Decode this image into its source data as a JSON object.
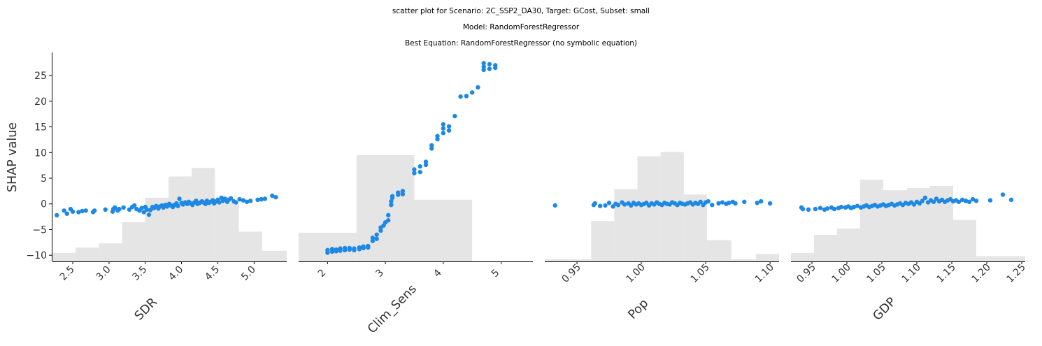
{
  "figure": {
    "title_lines": [
      "scatter plot for Scenario: 2C_SSP2_DA30, Target: GCost, Subset: small",
      "Model: RandomForestRegressor",
      "Best Equation: RandomForestRegressor (no symbolic equation)"
    ],
    "ylabel": "SHAP value",
    "colors": {
      "points": "#1e88e5",
      "histogram": "#e5e5e5",
      "axis": "#000000",
      "text": "#333333"
    }
  },
  "chart_data": [
    {
      "type": "scatter",
      "xlabel": "SDR",
      "ylabel": "SHAP value",
      "xlim": [
        2.22,
        5.45
      ],
      "ylim": [
        -11.2,
        29.5
      ],
      "xticks": [
        2.5,
        3.0,
        3.5,
        4.0,
        4.5,
        5.0
      ],
      "xtick_labels": [
        "2.5",
        "3.0",
        "3.5",
        "4.0",
        "4.5",
        "5.0"
      ],
      "yticks": [
        -10,
        -5,
        0,
        5,
        10,
        15,
        20,
        25
      ],
      "ytick_labels": [
        "−10",
        "−5",
        "0",
        "5",
        "10",
        "15",
        "20",
        "25"
      ],
      "histogram": {
        "edges": [
          2.22,
          2.54,
          2.86,
          3.18,
          3.5,
          3.82,
          4.14,
          4.46,
          4.79,
          5.11,
          5.45
        ],
        "heights": [
          0.08,
          0.13,
          0.17,
          0.37,
          0.6,
          0.8,
          0.88,
          0.55,
          0.28,
          0.1
        ]
      },
      "points": [
        [
          2.28,
          -2.2
        ],
        [
          2.38,
          -1.3
        ],
        [
          2.42,
          -1.9
        ],
        [
          2.47,
          -1.0
        ],
        [
          2.5,
          -1.5
        ],
        [
          2.58,
          -1.6
        ],
        [
          2.63,
          -1.4
        ],
        [
          2.68,
          -1.3
        ],
        [
          2.78,
          -1.6
        ],
        [
          2.8,
          -1.3
        ],
        [
          2.95,
          -1.1
        ],
        [
          3.05,
          -1.5
        ],
        [
          3.06,
          -1.0
        ],
        [
          3.08,
          -0.7
        ],
        [
          3.12,
          -1.3
        ],
        [
          3.14,
          -1.0
        ],
        [
          3.2,
          -0.7
        ],
        [
          3.28,
          -1.1
        ],
        [
          3.32,
          -0.6
        ],
        [
          3.35,
          -0.3
        ],
        [
          3.38,
          -1.0
        ],
        [
          3.42,
          -1.3
        ],
        [
          3.45,
          -0.8
        ],
        [
          3.48,
          -1.6
        ],
        [
          3.5,
          -0.6
        ],
        [
          3.52,
          -1.1
        ],
        [
          3.55,
          -2.1
        ],
        [
          3.57,
          -1.2
        ],
        [
          3.6,
          -0.6
        ],
        [
          3.62,
          -0.8
        ],
        [
          3.65,
          -0.4
        ],
        [
          3.68,
          -0.9
        ],
        [
          3.7,
          -0.5
        ],
        [
          3.73,
          -0.3
        ],
        [
          3.75,
          -0.7
        ],
        [
          3.78,
          -0.2
        ],
        [
          3.8,
          -0.5
        ],
        [
          3.83,
          0.0
        ],
        [
          3.85,
          -0.3
        ],
        [
          3.88,
          -0.6
        ],
        [
          3.9,
          -0.2
        ],
        [
          3.93,
          0.1
        ],
        [
          3.95,
          -0.4
        ],
        [
          3.97,
          1.0
        ],
        [
          4.0,
          0.2
        ],
        [
          4.02,
          -0.1
        ],
        [
          4.05,
          0.3
        ],
        [
          4.08,
          0.0
        ],
        [
          4.1,
          0.4
        ],
        [
          4.13,
          0.1
        ],
        [
          4.15,
          -0.2
        ],
        [
          4.18,
          0.3
        ],
        [
          4.2,
          0.6
        ],
        [
          4.22,
          0.0
        ],
        [
          4.25,
          0.2
        ],
        [
          4.28,
          0.5
        ],
        [
          4.3,
          0.3
        ],
        [
          4.33,
          0.0
        ],
        [
          4.35,
          0.6
        ],
        [
          4.38,
          0.2
        ],
        [
          4.4,
          0.4
        ],
        [
          4.43,
          0.7
        ],
        [
          4.45,
          0.1
        ],
        [
          4.48,
          0.5
        ],
        [
          4.5,
          0.8
        ],
        [
          4.52,
          0.3
        ],
        [
          4.55,
          1.2
        ],
        [
          4.57,
          0.6
        ],
        [
          4.6,
          1.0
        ],
        [
          4.63,
          0.4
        ],
        [
          4.65,
          0.8
        ],
        [
          4.68,
          1.1
        ],
        [
          4.72,
          0.5
        ],
        [
          4.75,
          0.3
        ],
        [
          4.8,
          0.9
        ],
        [
          4.85,
          0.7
        ],
        [
          4.9,
          0.4
        ],
        [
          4.95,
          0.6
        ],
        [
          5.05,
          0.8
        ],
        [
          5.1,
          0.9
        ],
        [
          5.15,
          1.0
        ],
        [
          5.25,
          1.6
        ],
        [
          5.3,
          1.3
        ]
      ]
    },
    {
      "type": "scatter",
      "xlabel": "Clim_Sens",
      "xlim": [
        1.5,
        5.55
      ],
      "ylim": [
        -11.2,
        29.5
      ],
      "xticks": [
        2,
        3,
        4,
        5
      ],
      "xtick_labels": [
        "2",
        "3",
        "4",
        "5"
      ],
      "histogram": {
        "edges": [
          1.5,
          2.5,
          3.5,
          4.5,
          5.55
        ],
        "heights": [
          0.27,
          1.0,
          0.58,
          0.0
        ]
      },
      "points": [
        [
          2.0,
          -9.5
        ],
        [
          2.0,
          -9.0
        ],
        [
          2.08,
          -9.3
        ],
        [
          2.08,
          -8.8
        ],
        [
          2.15,
          -9.2
        ],
        [
          2.15,
          -8.9
        ],
        [
          2.22,
          -9.1
        ],
        [
          2.22,
          -8.7
        ],
        [
          2.3,
          -9.0
        ],
        [
          2.3,
          -8.6
        ],
        [
          2.38,
          -8.9
        ],
        [
          2.38,
          -8.6
        ],
        [
          2.46,
          -9.0
        ],
        [
          2.46,
          -8.7
        ],
        [
          2.55,
          -8.8
        ],
        [
          2.55,
          -8.5
        ],
        [
          2.62,
          -8.6
        ],
        [
          2.62,
          -8.3
        ],
        [
          2.7,
          -8.5
        ],
        [
          2.7,
          -8.2
        ],
        [
          2.78,
          -7.2
        ],
        [
          2.78,
          -6.6
        ],
        [
          2.85,
          -6.8
        ],
        [
          2.85,
          -6.0
        ],
        [
          2.92,
          -5.2
        ],
        [
          2.92,
          -4.6
        ],
        [
          2.97,
          -4.2
        ],
        [
          3.0,
          -3.6
        ],
        [
          3.05,
          -3.2
        ],
        [
          3.05,
          -2.2
        ],
        [
          3.1,
          -0.2
        ],
        [
          3.1,
          0.5
        ],
        [
          3.12,
          1.5
        ],
        [
          3.12,
          1.2
        ],
        [
          3.22,
          1.8
        ],
        [
          3.22,
          2.2
        ],
        [
          3.3,
          1.9
        ],
        [
          3.3,
          2.5
        ],
        [
          3.5,
          6.0
        ],
        [
          3.5,
          6.7
        ],
        [
          3.6,
          6.2
        ],
        [
          3.6,
          7.3
        ],
        [
          3.7,
          7.6
        ],
        [
          3.7,
          8.2
        ],
        [
          3.8,
          10.8
        ],
        [
          3.8,
          11.4
        ],
        [
          3.9,
          12.6
        ],
        [
          3.9,
          13.2
        ],
        [
          4.0,
          13.8
        ],
        [
          4.0,
          14.7
        ],
        [
          4.0,
          15.5
        ],
        [
          4.1,
          14.3
        ],
        [
          4.1,
          15.1
        ],
        [
          4.2,
          17.1
        ],
        [
          4.3,
          20.9
        ],
        [
          4.4,
          21.0
        ],
        [
          4.5,
          21.7
        ],
        [
          4.6,
          22.7
        ],
        [
          4.7,
          26.1
        ],
        [
          4.7,
          26.7
        ],
        [
          4.7,
          27.4
        ],
        [
          4.8,
          26.3
        ],
        [
          4.8,
          27.2
        ],
        [
          4.9,
          26.5
        ],
        [
          4.9,
          27.0
        ]
      ]
    },
    {
      "type": "scatter",
      "xlabel": "Pop",
      "xlim": [
        0.925,
        1.107
      ],
      "ylim": [
        -11.2,
        29.5
      ],
      "xticks": [
        0.95,
        1.0,
        1.05,
        1.1
      ],
      "xtick_labels": [
        "0.95",
        "1.00",
        "1.05",
        "1.10"
      ],
      "histogram": {
        "edges": [
          0.925,
          0.943,
          0.961,
          0.979,
          0.997,
          1.015,
          1.033,
          1.051,
          1.07,
          1.089,
          1.107
        ],
        "heights": [
          0.02,
          0.02,
          0.38,
          0.68,
          0.99,
          1.03,
          0.63,
          0.2,
          0.02,
          0.07
        ]
      },
      "points": [
        [
          0.933,
          -0.3
        ],
        [
          0.963,
          -0.2
        ],
        [
          0.964,
          0.1
        ],
        [
          0.968,
          -0.4
        ],
        [
          0.972,
          -0.3
        ],
        [
          0.975,
          0.2
        ],
        [
          0.978,
          -0.5
        ],
        [
          0.98,
          0.0
        ],
        [
          0.982,
          -0.2
        ],
        [
          0.985,
          0.3
        ],
        [
          0.987,
          -0.1
        ],
        [
          0.99,
          0.1
        ],
        [
          0.992,
          -0.3
        ],
        [
          0.994,
          0.2
        ],
        [
          0.996,
          -0.1
        ],
        [
          0.998,
          0.1
        ],
        [
          1.0,
          -0.2
        ],
        [
          1.002,
          0.0
        ],
        [
          1.004,
          0.2
        ],
        [
          1.006,
          -0.3
        ],
        [
          1.008,
          0.1
        ],
        [
          1.01,
          -0.1
        ],
        [
          1.012,
          0.3
        ],
        [
          1.014,
          0.0
        ],
        [
          1.016,
          -0.2
        ],
        [
          1.018,
          0.2
        ],
        [
          1.02,
          0.0
        ],
        [
          1.022,
          -0.1
        ],
        [
          1.024,
          0.3
        ],
        [
          1.026,
          0.1
        ],
        [
          1.028,
          -0.2
        ],
        [
          1.03,
          0.2
        ],
        [
          1.032,
          0.0
        ],
        [
          1.034,
          -0.1
        ],
        [
          1.036,
          0.1
        ],
        [
          1.038,
          0.3
        ],
        [
          1.04,
          -0.1
        ],
        [
          1.042,
          0.2
        ],
        [
          1.044,
          0.0
        ],
        [
          1.046,
          0.4
        ],
        [
          1.048,
          -0.2
        ],
        [
          1.05,
          0.3
        ],
        [
          1.052,
          0.5
        ],
        [
          1.055,
          -0.2
        ],
        [
          1.06,
          0.1
        ],
        [
          1.063,
          0.3
        ],
        [
          1.066,
          0.0
        ],
        [
          1.068,
          0.2
        ],
        [
          1.071,
          0.4
        ],
        [
          1.073,
          0.1
        ],
        [
          1.08,
          0.4
        ],
        [
          1.09,
          0.2
        ],
        [
          1.093,
          0.5
        ],
        [
          1.1,
          0.1
        ]
      ]
    },
    {
      "type": "scatter",
      "xlabel": "GDP",
      "xlim": [
        0.92,
        1.255
      ],
      "ylim": [
        -11.2,
        29.5
      ],
      "xticks": [
        0.95,
        1.0,
        1.05,
        1.1,
        1.15,
        1.2,
        1.25
      ],
      "xtick_labels": [
        "0.95",
        "1.00",
        "1.05",
        "1.10",
        "1.15",
        "1.20",
        "1.25"
      ],
      "histogram": {
        "edges": [
          0.92,
          0.953,
          0.986,
          1.019,
          1.052,
          1.086,
          1.119,
          1.152,
          1.185,
          1.218,
          1.255
        ],
        "heights": [
          0.08,
          0.25,
          0.31,
          0.77,
          0.67,
          0.69,
          0.71,
          0.39,
          0.05,
          0.05
        ]
      },
      "points": [
        [
          0.935,
          -0.7
        ],
        [
          0.937,
          -1.0
        ],
        [
          0.945,
          -1.1
        ],
        [
          0.955,
          -1.0
        ],
        [
          0.962,
          -0.8
        ],
        [
          0.968,
          -1.1
        ],
        [
          0.972,
          -0.9
        ],
        [
          0.978,
          -0.7
        ],
        [
          0.982,
          -1.0
        ],
        [
          0.988,
          -0.8
        ],
        [
          0.992,
          -0.6
        ],
        [
          0.998,
          -0.7
        ],
        [
          1.002,
          -0.5
        ],
        [
          1.006,
          -0.8
        ],
        [
          1.01,
          -0.6
        ],
        [
          1.015,
          -0.4
        ],
        [
          1.02,
          -0.7
        ],
        [
          1.024,
          -0.5
        ],
        [
          1.028,
          -0.3
        ],
        [
          1.032,
          -0.6
        ],
        [
          1.036,
          -0.4
        ],
        [
          1.04,
          -0.2
        ],
        [
          1.044,
          -0.5
        ],
        [
          1.048,
          -0.3
        ],
        [
          1.052,
          -0.1
        ],
        [
          1.056,
          -0.4
        ],
        [
          1.06,
          -0.2
        ],
        [
          1.064,
          0.0
        ],
        [
          1.068,
          -0.3
        ],
        [
          1.072,
          -0.1
        ],
        [
          1.076,
          0.1
        ],
        [
          1.08,
          -0.2
        ],
        [
          1.084,
          0.2
        ],
        [
          1.088,
          0.0
        ],
        [
          1.092,
          0.3
        ],
        [
          1.096,
          -0.1
        ],
        [
          1.1,
          0.4
        ],
        [
          1.104,
          0.1
        ],
        [
          1.108,
          0.6
        ],
        [
          1.112,
          1.2
        ],
        [
          1.116,
          0.3
        ],
        [
          1.12,
          0.7
        ],
        [
          1.124,
          0.4
        ],
        [
          1.128,
          1.0
        ],
        [
          1.132,
          0.5
        ],
        [
          1.136,
          0.8
        ],
        [
          1.14,
          0.4
        ],
        [
          1.144,
          0.7
        ],
        [
          1.148,
          0.9
        ],
        [
          1.152,
          0.5
        ],
        [
          1.156,
          0.7
        ],
        [
          1.16,
          0.4
        ],
        [
          1.165,
          0.8
        ],
        [
          1.17,
          0.6
        ],
        [
          1.175,
          0.4
        ],
        [
          1.18,
          0.9
        ],
        [
          1.185,
          0.6
        ],
        [
          1.205,
          0.7
        ],
        [
          1.223,
          1.8
        ],
        [
          1.235,
          0.8
        ]
      ]
    }
  ]
}
